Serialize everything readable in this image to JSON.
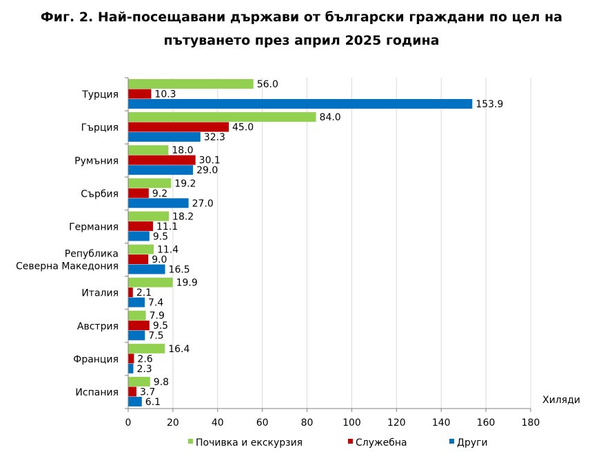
{
  "title_line1": "Фиг. 2. Най-посещавани държави от български граждани по цел на",
  "title_line2": "пътуването през април 2025 година",
  "chart_data": {
    "type": "bar",
    "orientation": "horizontal",
    "categories": [
      "Турция",
      "Гърция",
      "Румъния",
      "Сърбия",
      "Германия",
      "Република Северна Македония",
      "Италия",
      "Австрия",
      "Франция",
      "Испания"
    ],
    "category_lines": [
      [
        "Турция"
      ],
      [
        "Гърция"
      ],
      [
        "Румъния"
      ],
      [
        "Сърбия"
      ],
      [
        "Германия"
      ],
      [
        "Република",
        "Северна Македония"
      ],
      [
        "Италия"
      ],
      [
        "Австрия"
      ],
      [
        "Франция"
      ],
      [
        "Испания"
      ]
    ],
    "series": [
      {
        "name": "Почивка и екскурзия",
        "color": "#92d050",
        "values": [
          56.0,
          84.0,
          18.0,
          19.2,
          18.2,
          11.4,
          19.9,
          7.9,
          16.4,
          9.8
        ]
      },
      {
        "name": "Служебна",
        "color": "#c00000",
        "values": [
          10.3,
          45.0,
          30.1,
          9.2,
          11.1,
          9.0,
          2.1,
          9.5,
          2.6,
          3.7
        ]
      },
      {
        "name": "Други",
        "color": "#0070c0",
        "values": [
          153.9,
          32.3,
          29.0,
          27.0,
          9.5,
          16.5,
          7.4,
          7.5,
          2.3,
          6.1
        ]
      }
    ],
    "xlabel": "Хиляди",
    "xlim": [
      0,
      180
    ],
    "xticks": [
      0,
      20,
      40,
      60,
      80,
      100,
      120,
      140,
      160,
      180
    ],
    "grid": true,
    "legend_position": "bottom"
  }
}
